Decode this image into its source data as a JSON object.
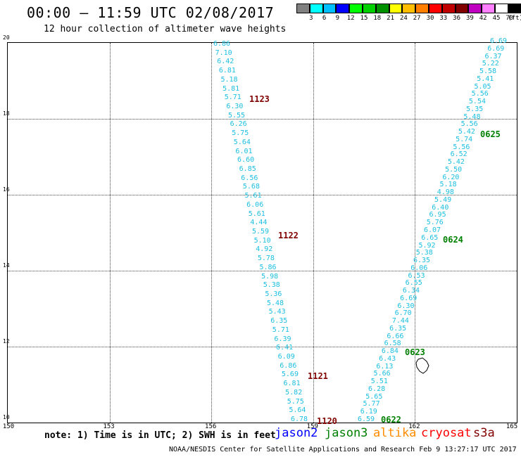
{
  "header": {
    "title": "00:00 — 11:59 UTC 02/08/2017",
    "subtitle": "12 hour collection of altimeter wave heights"
  },
  "colorbar": {
    "colors": [
      "#808080",
      "#00ffff",
      "#00bfff",
      "#0000ff",
      "#00ff00",
      "#00d000",
      "#009000",
      "#ffff00",
      "#ffbf00",
      "#ff8000",
      "#ff0000",
      "#c00000",
      "#800000",
      "#c000c0",
      "#ff80ff",
      "#ffffff",
      "#000000"
    ],
    "labels": [
      "3",
      "6",
      "9",
      "12",
      "15",
      "18",
      "21",
      "24",
      "27",
      "30",
      "33",
      "36",
      "39",
      "42",
      "45",
      "70",
      "(ft)"
    ]
  },
  "map": {
    "x_ticks": [
      "150",
      "153",
      "156",
      "159",
      "162",
      "165"
    ],
    "y_ticks": [
      "10",
      "12",
      "14",
      "16",
      "18",
      "20"
    ],
    "lon_range": [
      150,
      165
    ],
    "lat_range": [
      10,
      20
    ]
  },
  "tracks": {
    "track_a_values": [
      "6.86",
      "7.10",
      "6.42",
      "6.81",
      "5.18",
      "5.81",
      "5.71",
      "6.30",
      "5.55",
      "6.26",
      "5.75",
      "5.64",
      "6.01",
      "6.60",
      "6.85",
      "6.56",
      "5.68",
      "5.61",
      "6.06",
      "5.61",
      "4.44",
      "5.59",
      "5.10",
      "4.92",
      "5.78",
      "5.86",
      "5.98",
      "5.38",
      "5.36",
      "5.48",
      "5.43",
      "6.35",
      "5.71",
      "6.39",
      "6.41",
      "6.09",
      "6.86",
      "5.69",
      "6.81",
      "5.82",
      "5.75",
      "5.64",
      "6.78"
    ],
    "track_b_values": [
      "6.69",
      "6.69",
      "6.37",
      "5.22",
      "5.58",
      "5.41",
      "5.05",
      "5.56",
      "5.54",
      "5.35",
      "5.48",
      "5.56",
      "5.42",
      "5.74",
      "5.56",
      "6.52",
      "5.42",
      "5.50",
      "6.20",
      "5.18",
      "4.98",
      "5.49",
      "6.40",
      "6.95",
      "5.76",
      "6.07",
      "6.65",
      "5.92",
      "5.38",
      "6.35",
      "6.06",
      "6.53",
      "6.55",
      "6.34",
      "6.69",
      "6.30",
      "6.70",
      "7.44",
      "6.35",
      "6.66",
      "6.58",
      "6.84",
      "6.43",
      "6.13",
      "5.66",
      "5.51",
      "6.28",
      "5.65",
      "5.77",
      "6.19",
      "6.59"
    ]
  },
  "passes": [
    {
      "label": "1123",
      "color": "#800000"
    },
    {
      "label": "1122",
      "color": "#800000"
    },
    {
      "label": "1121",
      "color": "#800000"
    },
    {
      "label": "1120",
      "color": "#800000"
    },
    {
      "label": "0625",
      "color": "#008000"
    },
    {
      "label": "0624",
      "color": "#008000"
    },
    {
      "label": "0623",
      "color": "#008000"
    },
    {
      "label": "0622",
      "color": "#008000"
    }
  ],
  "note": "note: 1) Time is in UTC; 2) SWH is in feet",
  "satellites": [
    {
      "name": "jason2",
      "color": "#0000ff"
    },
    {
      "name": "jason3",
      "color": "#008000"
    },
    {
      "name": "altika",
      "color": "#ff8c00"
    },
    {
      "name": "cryosat",
      "color": "#ff0000"
    },
    {
      "name": "s3a",
      "color": "#800000"
    }
  ],
  "footer": "NOAA/NESDIS Center for Satellite Applications and Research   Feb  9 13:27:17 UTC 2017"
}
